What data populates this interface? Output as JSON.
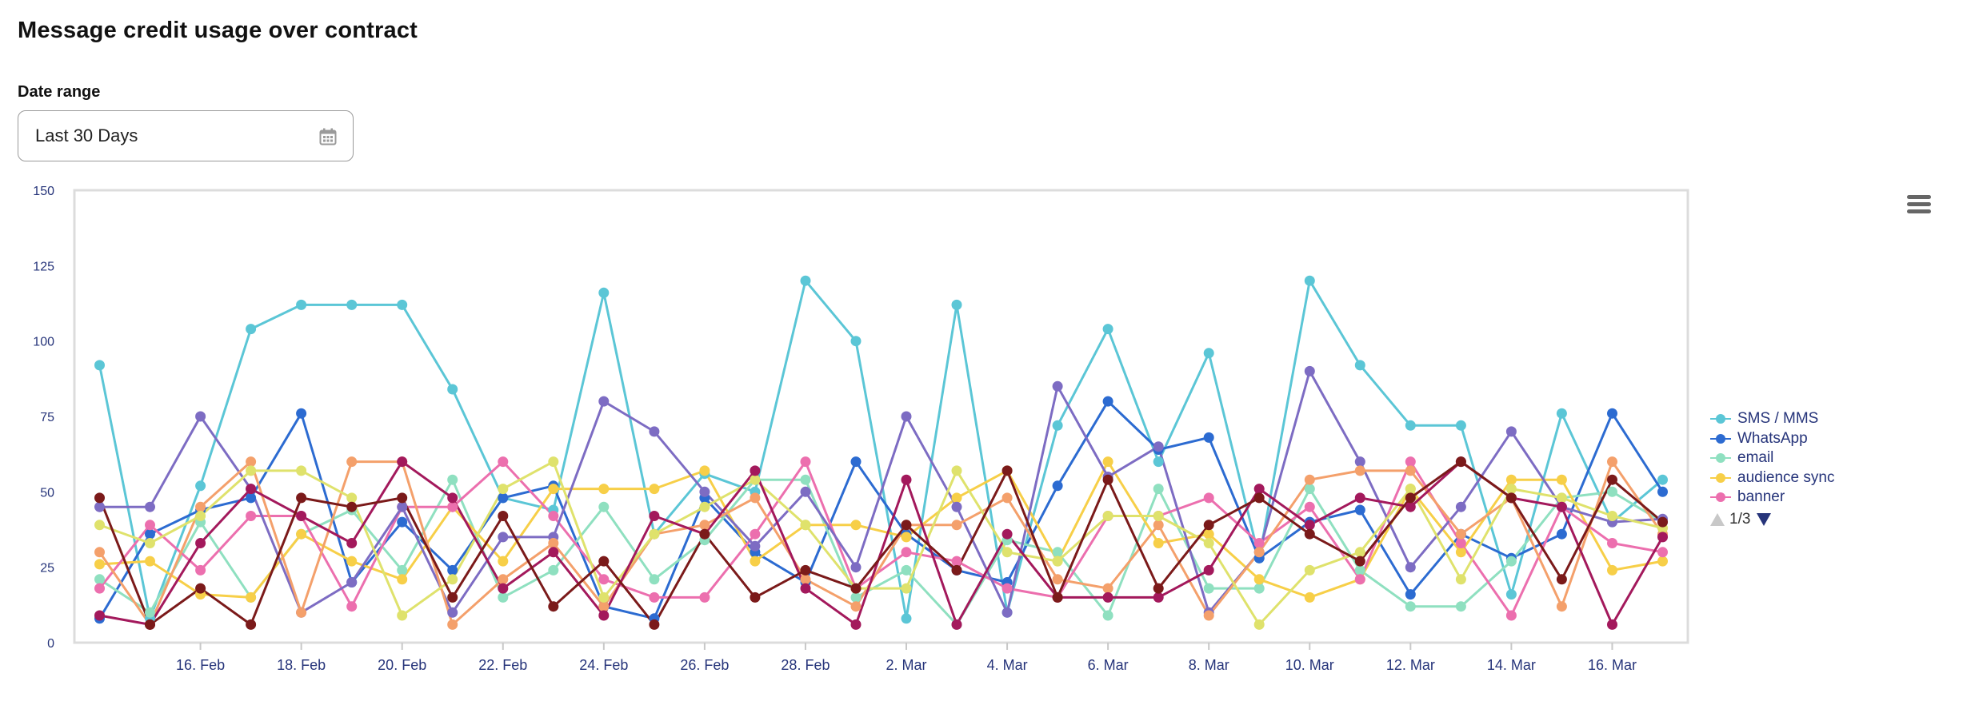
{
  "header": {
    "title": "Message credit usage over contract"
  },
  "filter": {
    "label": "Date range",
    "value": "Last 30 Days",
    "icon": "calendar-icon"
  },
  "menu": {
    "icon": "hamburger-menu-icon"
  },
  "legend_nav": {
    "page_text": "1/3"
  },
  "chart_data": {
    "type": "line",
    "title": "",
    "xlabel": "",
    "ylabel": "",
    "ylim": [
      0,
      150
    ],
    "yticks": [
      0,
      25,
      50,
      75,
      100,
      125,
      150
    ],
    "x": [
      "14 Feb",
      "15 Feb",
      "16 Feb",
      "17 Feb",
      "18 Feb",
      "19 Feb",
      "20 Feb",
      "21 Feb",
      "22 Feb",
      "23 Feb",
      "24 Feb",
      "25 Feb",
      "26 Feb",
      "27 Feb",
      "28 Feb",
      "1 Mar",
      "2 Mar",
      "3 Mar",
      "4 Mar",
      "5 Mar",
      "6 Mar",
      "7 Mar",
      "8 Mar",
      "9 Mar",
      "10 Mar",
      "11 Mar",
      "12 Mar",
      "13 Mar",
      "14 Mar",
      "15 Mar",
      "16 Mar",
      "17 Mar"
    ],
    "xtick_labels": [
      {
        "at": 2,
        "label": "16. Feb"
      },
      {
        "at": 4,
        "label": "18. Feb"
      },
      {
        "at": 6,
        "label": "20. Feb"
      },
      {
        "at": 8,
        "label": "22. Feb"
      },
      {
        "at": 10,
        "label": "24. Feb"
      },
      {
        "at": 12,
        "label": "26. Feb"
      },
      {
        "at": 14,
        "label": "28. Feb"
      },
      {
        "at": 16,
        "label": "2. Mar"
      },
      {
        "at": 18,
        "label": "4. Mar"
      },
      {
        "at": 20,
        "label": "6. Mar"
      },
      {
        "at": 22,
        "label": "8. Mar"
      },
      {
        "at": 24,
        "label": "10. Mar"
      },
      {
        "at": 26,
        "label": "12. Mar"
      },
      {
        "at": 28,
        "label": "14. Mar"
      },
      {
        "at": 30,
        "label": "16. Mar"
      }
    ],
    "legend_position": "right",
    "series": [
      {
        "name": "SMS / MMS",
        "color": "#5bc6d6",
        "in_legend": true,
        "values": [
          92,
          8,
          52,
          104,
          112,
          112,
          112,
          84,
          48,
          44,
          116,
          36,
          56,
          50,
          120,
          100,
          8,
          112,
          10,
          72,
          104,
          60,
          96,
          28,
          120,
          92,
          72,
          72,
          16,
          76,
          40,
          54
        ]
      },
      {
        "name": "WhatsApp",
        "color": "#2c6bd1",
        "in_legend": true,
        "values": [
          8,
          36,
          44,
          48,
          76,
          20,
          40,
          24,
          48,
          52,
          12,
          8,
          48,
          30,
          20,
          60,
          36,
          24,
          20,
          52,
          80,
          64,
          68,
          28,
          40,
          44,
          16,
          36,
          28,
          36,
          76,
          50
        ]
      },
      {
        "name": "email",
        "color": "#8fe0c0",
        "in_legend": true,
        "values": [
          21,
          10,
          40,
          15,
          36,
          44,
          24,
          54,
          15,
          24,
          45,
          21,
          34,
          54,
          54,
          15,
          24,
          6,
          34,
          30,
          9,
          51,
          18,
          18,
          51,
          24,
          12,
          12,
          27,
          48,
          50,
          40
        ]
      },
      {
        "name": "audience sync",
        "color": "#f7cf48",
        "in_legend": true,
        "values": [
          26,
          27,
          16,
          15,
          36,
          27,
          21,
          45,
          27,
          51,
          51,
          51,
          57,
          27,
          39,
          39,
          35,
          48,
          57,
          27,
          60,
          33,
          36,
          21,
          15,
          21,
          51,
          30,
          54,
          54,
          24,
          27
        ]
      },
      {
        "name": "banner",
        "color": "#ec6fae",
        "in_legend": true,
        "values": [
          18,
          39,
          24,
          42,
          42,
          12,
          45,
          45,
          60,
          42,
          21,
          15,
          15,
          36,
          60,
          18,
          30,
          27,
          18,
          15,
          42,
          42,
          48,
          33,
          45,
          21,
          60,
          33,
          9,
          45,
          33,
          30
        ]
      },
      {
        "name": "",
        "color": "#7d6cc3",
        "in_legend": false,
        "values": [
          45,
          45,
          75,
          51,
          10,
          20,
          45,
          10,
          35,
          35,
          80,
          70,
          50,
          32,
          50,
          25,
          75,
          45,
          10,
          85,
          55,
          65,
          10,
          30,
          90,
          60,
          25,
          45,
          70,
          45,
          40,
          41
        ]
      },
      {
        "name": "",
        "color": "#f4a06b",
        "in_legend": false,
        "values": [
          30,
          6,
          45,
          60,
          10,
          60,
          60,
          6,
          21,
          33,
          12,
          36,
          39,
          48,
          21,
          12,
          39,
          39,
          48,
          21,
          18,
          39,
          9,
          30,
          54,
          57,
          57,
          36,
          48,
          12,
          60,
          36
        ]
      },
      {
        "name": "",
        "color": "#dfe26c",
        "in_legend": false,
        "values": [
          39,
          33,
          42,
          57,
          57,
          48,
          9,
          21,
          51,
          60,
          15,
          36,
          45,
          54,
          39,
          18,
          18,
          57,
          30,
          27,
          42,
          42,
          33,
          6,
          24,
          30,
          51,
          21,
          51,
          48,
          42,
          38
        ]
      },
      {
        "name": "",
        "color": "#a3195c",
        "in_legend": false,
        "values": [
          9,
          6,
          33,
          51,
          42,
          33,
          60,
          48,
          18,
          30,
          9,
          42,
          36,
          57,
          18,
          6,
          54,
          6,
          36,
          15,
          15,
          15,
          24,
          51,
          39,
          48,
          45,
          60,
          48,
          45,
          6,
          35
        ]
      },
      {
        "name": "",
        "color": "#7b1a1a",
        "in_legend": false,
        "values": [
          48,
          6,
          18,
          6,
          48,
          45,
          48,
          15,
          42,
          12,
          27,
          6,
          36,
          15,
          24,
          18,
          39,
          24,
          57,
          15,
          54,
          18,
          39,
          48,
          36,
          27,
          48,
          60,
          48,
          21,
          54,
          40
        ]
      }
    ]
  }
}
